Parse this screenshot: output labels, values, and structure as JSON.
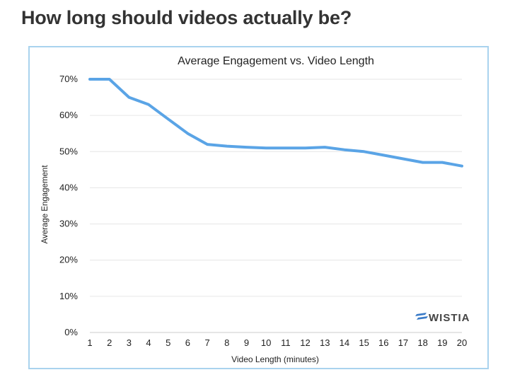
{
  "page": {
    "heading": "How long should videos actually be?"
  },
  "brand": {
    "logo_text": "WISTIA",
    "logo_color": "#3a7bc8"
  },
  "chart_data": {
    "type": "line",
    "title": "Average Engagement vs. Video Length",
    "xlabel": "Video Length (minutes)",
    "ylabel": "Average Engagement",
    "x": [
      1,
      2,
      3,
      4,
      5,
      6,
      7,
      8,
      9,
      10,
      11,
      12,
      13,
      14,
      15,
      16,
      17,
      18,
      19,
      20
    ],
    "series": [
      {
        "values": [
          70,
          70,
          65,
          63,
          59,
          55,
          52,
          51.5,
          51.2,
          51,
          51,
          51,
          51.2,
          50.5,
          50,
          49,
          48,
          47,
          47,
          46
        ],
        "color": "#5aa4e6"
      }
    ],
    "xlim": [
      1,
      20
    ],
    "ylim": [
      0,
      70
    ],
    "y_ticks": [
      "0%",
      "10%",
      "20%",
      "30%",
      "40%",
      "50%",
      "60%",
      "70%"
    ],
    "x_ticks": [
      "1",
      "2",
      "3",
      "4",
      "5",
      "6",
      "7",
      "8",
      "9",
      "10",
      "11",
      "12",
      "13",
      "14",
      "15",
      "16",
      "17",
      "18",
      "19",
      "20"
    ],
    "grid": true,
    "grid_color": "#e6e6e6"
  }
}
